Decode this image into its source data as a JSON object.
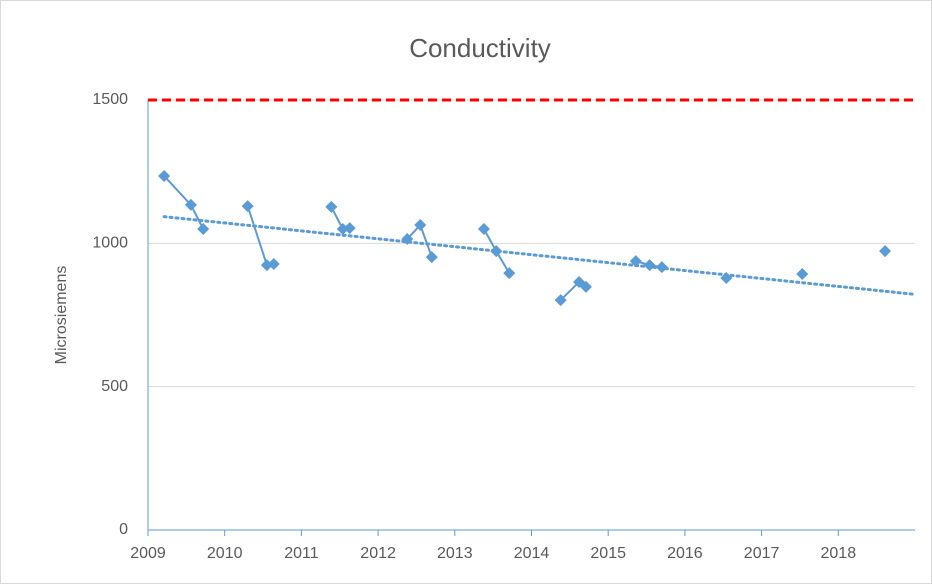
{
  "chart_data": {
    "type": "line",
    "title": "Conductivity",
    "y_label": "Microsiemens",
    "series": [
      {
        "color": "#5b9bd5",
        "x": [
          2009.21,
          2009.56,
          2009.72,
          null,
          2010.3,
          2010.55,
          2010.64,
          null,
          2011.39,
          2011.54,
          2011.63,
          null,
          2012.38,
          2012.55,
          2012.7,
          null,
          2013.38,
          2013.54,
          2013.71,
          null,
          2014.38,
          2014.62,
          2014.71,
          null,
          2015.36,
          2015.54,
          2015.7,
          null,
          2016.54,
          null,
          2017.53,
          null,
          2018.61
        ],
        "values": [
          1235,
          1134,
          1050,
          null,
          1130,
          924,
          928,
          null,
          1127,
          1050,
          1053,
          null,
          1015,
          1064,
          952,
          null,
          1050,
          973,
          896,
          null,
          802,
          865,
          848,
          null,
          938,
          924,
          917,
          null,
          879,
          null,
          893,
          null,
          973
        ]
      }
    ],
    "trendline": {
      "color": "#5b9bd5",
      "x": [
        2009.21,
        2019
      ],
      "values": [
        1093,
        822
      ]
    },
    "reference_line": {
      "value": 1500,
      "color": "#ff0000"
    },
    "xlim": [
      2009,
      2019
    ],
    "xticks": [
      2009,
      2010,
      2011,
      2012,
      2013,
      2014,
      2015,
      2016,
      2017,
      2018
    ],
    "ylim": [
      0,
      1500
    ],
    "yticks": [
      0,
      500,
      1000,
      1500
    ],
    "grid": true
  }
}
